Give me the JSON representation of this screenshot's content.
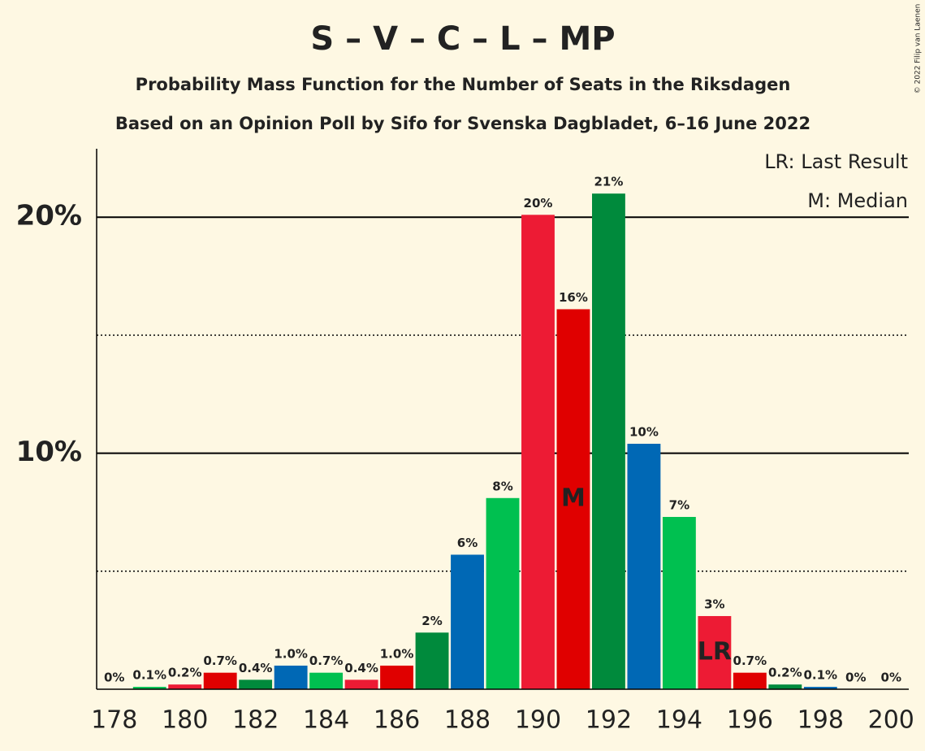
{
  "chart_data": {
    "type": "bar",
    "title": "S – V – C – L – MP",
    "subtitle": "Probability Mass Function for the Number of Seats in the Riksdagen",
    "subtitle2": "Based on an Opinion Poll by Sifo for Svenska Dagbladet, 6–16 June 2022",
    "copyright": "© 2022 Filip van Laenen",
    "legend": [
      "LR: Last Result",
      "M: Median"
    ],
    "x": [
      178,
      179,
      180,
      181,
      182,
      183,
      184,
      185,
      186,
      187,
      188,
      189,
      190,
      191,
      192,
      193,
      194,
      195,
      196,
      197,
      198,
      199,
      200
    ],
    "values": [
      0,
      0.1,
      0.2,
      0.7,
      0.4,
      1.0,
      0.7,
      0.4,
      1.0,
      2.4,
      5.7,
      8.1,
      20.1,
      16.1,
      21.0,
      10.4,
      7.3,
      3.1,
      0.7,
      0.2,
      0.1,
      0,
      0
    ],
    "value_labels": [
      "0%",
      "0.1%",
      "0.2%",
      "0.7%",
      "0.4%",
      "1.0%",
      "0.7%",
      "0.4%",
      "1.0%",
      "2%",
      "6%",
      "8%",
      "20%",
      "16%",
      "21%",
      "10%",
      "7%",
      "3%",
      "0.7%",
      "0.2%",
      "0.1%",
      "0%",
      "0%"
    ],
    "colors": [
      "#0068b5",
      "#00c050",
      "#ed1b34",
      "#e00000",
      "#008a3c",
      "#0068b5",
      "#00c050",
      "#ed1b34",
      "#e00000",
      "#008a3c",
      "#0068b5",
      "#00c050",
      "#ed1b34",
      "#e00000",
      "#008a3c",
      "#0068b5",
      "#00c050",
      "#ed1b34",
      "#e00000",
      "#008a3c",
      "#0068b5",
      "#00c050",
      "#ed1b34"
    ],
    "median": {
      "x": 191,
      "label": "M"
    },
    "last_result": {
      "x": 195,
      "label": "LR"
    },
    "xlim": [
      177.5,
      200.5
    ],
    "xticks": [
      178,
      180,
      182,
      184,
      186,
      188,
      190,
      192,
      194,
      196,
      198,
      200
    ],
    "ylim": [
      0,
      22.9
    ],
    "yticks": [
      {
        "value": 10,
        "label": "10%"
      },
      {
        "value": 20,
        "label": "20%"
      }
    ],
    "minor_yticks": [
      5,
      15
    ],
    "grid": true
  }
}
